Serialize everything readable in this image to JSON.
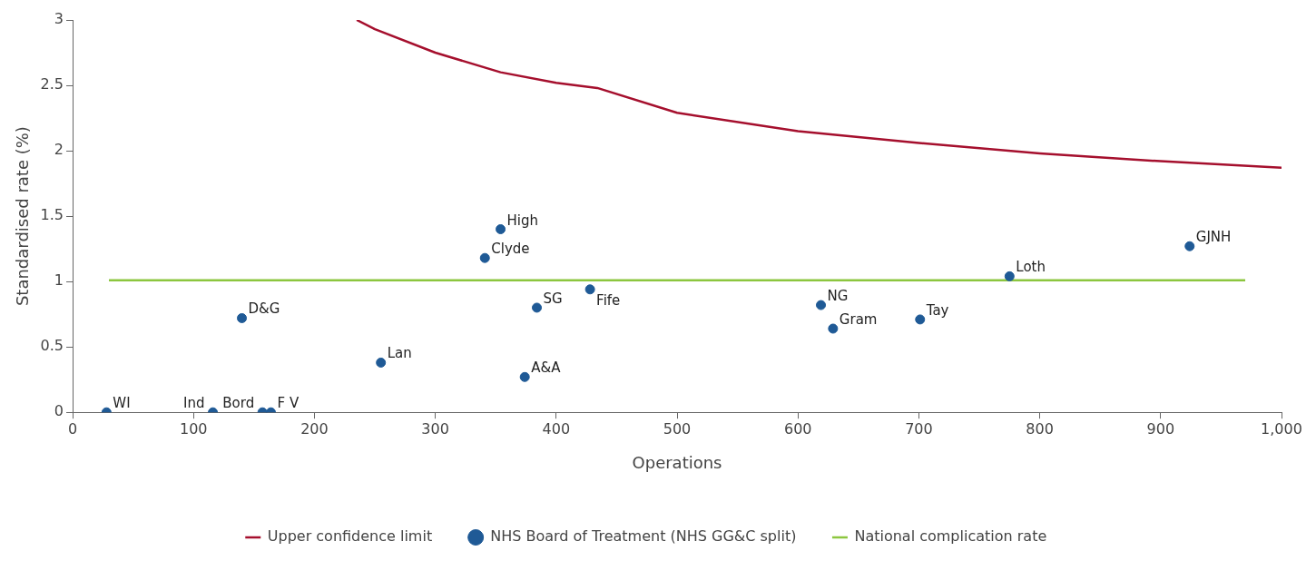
{
  "chart_data": {
    "type": "scatter",
    "xlabel": "Operations",
    "ylabel": "Standardised rate (%)",
    "xlim": [
      0,
      1000
    ],
    "xticks": [
      0,
      100,
      200,
      300,
      400,
      500,
      600,
      700,
      800,
      900,
      {
        "value": 1000,
        "label": "1,000"
      }
    ],
    "ylim": [
      0,
      3
    ],
    "yticks": [
      0,
      0.5,
      1,
      1.5,
      2,
      2.5,
      3
    ],
    "grid": false,
    "legend": "bottom",
    "series": [
      {
        "name": "Upper confidence limit",
        "type": "line",
        "color": "#a50f2d",
        "x": [
          235,
          250,
          300,
          354,
          400,
          434,
          500,
          600,
          700,
          800,
          900,
          1000
        ],
        "values": [
          3,
          2.93,
          2.75,
          2.6,
          2.52,
          2.48,
          2.29,
          2.15,
          2.06,
          1.98,
          1.92,
          1.87
        ]
      },
      {
        "name": "NHS Board of Treatment (NHS GG&C split)",
        "type": "scatter",
        "marker": "circle",
        "color": "#1f5a96",
        "x": [
          28,
          116,
          157,
          164,
          140,
          255,
          341,
          354,
          384,
          374,
          428,
          619,
          629,
          701,
          775,
          924
        ],
        "values": [
          0,
          0,
          0,
          0,
          0.72,
          0.38,
          1.18,
          1.4,
          0.8,
          0.27,
          0.94,
          0.82,
          0.64,
          0.71,
          1.04,
          1.27
        ]
      },
      {
        "name": "National complication rate",
        "type": "line",
        "color": "#8cc63f",
        "x": [
          30,
          970
        ],
        "values": [
          1.01,
          1.01
        ]
      }
    ],
    "annotations": [
      {
        "text": "WI",
        "x": 28,
        "y": 0
      },
      {
        "text": "Ind",
        "x": 116,
        "y": 0
      },
      {
        "text": "Bord",
        "x": 157,
        "y": 0
      },
      {
        "text": "F V",
        "x": 164,
        "y": 0
      },
      {
        "text": "D&G",
        "x": 140,
        "y": 0.72
      },
      {
        "text": "Lan",
        "x": 255,
        "y": 0.38
      },
      {
        "text": "Clyde",
        "x": 341,
        "y": 1.18
      },
      {
        "text": "High",
        "x": 354,
        "y": 1.4
      },
      {
        "text": "SG",
        "x": 384,
        "y": 0.8
      },
      {
        "text": "A&A",
        "x": 374,
        "y": 0.27
      },
      {
        "text": "Fife",
        "x": 428,
        "y": 0.94
      },
      {
        "text": "NG",
        "x": 619,
        "y": 0.82
      },
      {
        "text": "Gram",
        "x": 629,
        "y": 0.64
      },
      {
        "text": "Tay",
        "x": 701,
        "y": 0.71
      },
      {
        "text": "Loth",
        "x": 775,
        "y": 1.04
      },
      {
        "text": "GJNH",
        "x": 924,
        "y": 1.27
      }
    ]
  }
}
